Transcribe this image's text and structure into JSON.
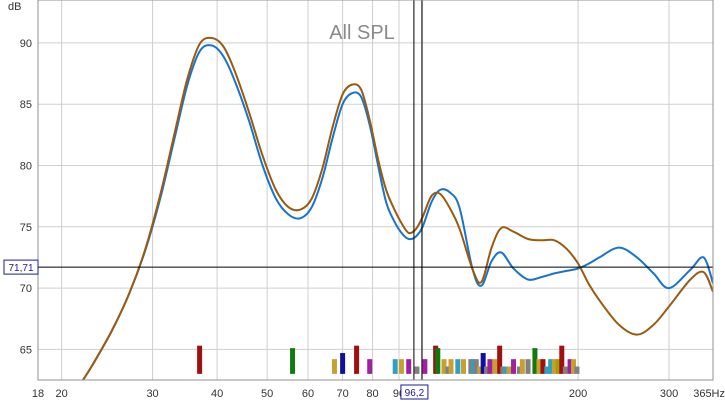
{
  "chart_data": {
    "type": "line",
    "title": "All SPL",
    "ylabel": "dB",
    "xunit": "Hz",
    "xscale": "log",
    "xlim": [
      18,
      365
    ],
    "ylim": [
      62.5,
      93.5
    ],
    "grid": true,
    "x_ticks": [
      {
        "value": 18,
        "label": "18"
      },
      {
        "value": 20,
        "label": "20"
      },
      {
        "value": 30,
        "label": "30"
      },
      {
        "value": 40,
        "label": "40"
      },
      {
        "value": 50,
        "label": "50"
      },
      {
        "value": 60,
        "label": "60"
      },
      {
        "value": 70,
        "label": "70"
      },
      {
        "value": 80,
        "label": "80"
      },
      {
        "value": 90,
        "label": "90"
      },
      {
        "value": 200,
        "label": "200"
      },
      {
        "value": 300,
        "label": "300"
      },
      {
        "value": 365,
        "label": "365Hz"
      }
    ],
    "y_ticks": [
      65,
      70,
      75,
      80,
      85,
      90
    ],
    "cursor": {
      "x": 96.2,
      "x_label": "96,2",
      "y": 71.71,
      "y_label": "71,71"
    },
    "series": [
      {
        "color": "#1874cd",
        "x": [
          22,
          23,
          25,
          27,
          29,
          31,
          33,
          35,
          37,
          39,
          41,
          43,
          46,
          49,
          52,
          55,
          58,
          61,
          64,
          67,
          70,
          73,
          76,
          79,
          82,
          85,
          88,
          91,
          94,
          97,
          100,
          104,
          108,
          113,
          118,
          125,
          130,
          136,
          142,
          150,
          160,
          170,
          180,
          190,
          200,
          210,
          220,
          240,
          260,
          280,
          300,
          330,
          350,
          365
        ],
        "y": [
          62.5,
          63.8,
          66.5,
          69.5,
          73.0,
          77.2,
          82.0,
          86.5,
          89.3,
          89.8,
          89.0,
          87.2,
          83.8,
          80.0,
          77.3,
          76.0,
          75.7,
          76.6,
          79.0,
          82.3,
          85.0,
          85.9,
          85.6,
          83.3,
          80.0,
          77.0,
          75.5,
          74.5,
          74.0,
          74.2,
          75.0,
          77.0,
          78.0,
          77.8,
          76.5,
          71.5,
          70.2,
          72.2,
          72.9,
          71.6,
          70.7,
          70.9,
          71.2,
          71.4,
          71.6,
          72.0,
          72.5,
          73.3,
          72.5,
          71.2,
          70.0,
          71.5,
          72.5,
          70.4
        ]
      },
      {
        "color": "#9a5a10",
        "x": [
          22,
          23,
          25,
          27,
          29,
          31,
          33,
          35,
          37,
          39,
          41,
          43,
          46,
          49,
          52,
          55,
          58,
          61,
          64,
          67,
          70,
          73,
          76,
          79,
          82,
          85,
          88,
          91,
          94,
          97,
          100,
          104,
          108,
          113,
          118,
          125,
          130,
          136,
          142,
          150,
          160,
          170,
          180,
          190,
          200,
          210,
          220,
          240,
          260,
          280,
          300,
          330,
          350,
          365
        ],
        "y": [
          62.5,
          63.8,
          66.5,
          69.5,
          73.1,
          77.5,
          82.4,
          87.0,
          89.9,
          90.4,
          89.8,
          88.0,
          84.5,
          80.8,
          78.0,
          76.6,
          76.4,
          77.3,
          79.8,
          83.2,
          85.8,
          86.6,
          86.2,
          83.7,
          80.5,
          78.0,
          76.5,
          75.3,
          74.5,
          74.8,
          75.8,
          77.5,
          77.7,
          76.5,
          74.8,
          71.5,
          70.5,
          73.3,
          74.9,
          74.6,
          74.0,
          73.9,
          73.9,
          73.2,
          72.0,
          70.3,
          69.0,
          67.0,
          66.2,
          67.0,
          68.5,
          70.7,
          71.3,
          69.7
        ]
      }
    ],
    "markers": {
      "bottom": 63.0,
      "bars": [
        {
          "x": 37.0,
          "value": 65.3,
          "color": "#a01010"
        },
        {
          "x": 56.0,
          "value": 65.1,
          "color": "#107a10"
        },
        {
          "x": 67.5,
          "value": 64.2,
          "color": "#c8a030"
        },
        {
          "x": 70.0,
          "value": 64.7,
          "color": "#1010a0"
        },
        {
          "x": 74.5,
          "value": 65.3,
          "color": "#a01010"
        },
        {
          "x": 79.0,
          "value": 64.2,
          "color": "#a020a0"
        },
        {
          "x": 88.5,
          "value": 64.2,
          "color": "#30a0c0"
        },
        {
          "x": 91.0,
          "value": 64.2,
          "color": "#c8a030"
        },
        {
          "x": 94.0,
          "value": 64.2,
          "color": "#a020a0"
        },
        {
          "x": 97.5,
          "value": 63.6,
          "color": "#808080"
        },
        {
          "x": 101.0,
          "value": 64.2,
          "color": "#a020a0"
        },
        {
          "x": 106.0,
          "value": 65.3,
          "color": "#a01010"
        },
        {
          "x": 107.0,
          "value": 65.1,
          "color": "#107a10"
        },
        {
          "x": 110.0,
          "value": 64.2,
          "color": "#c8a030"
        },
        {
          "x": 112.0,
          "value": 63.6,
          "color": "#808080"
        },
        {
          "x": 113.5,
          "value": 64.2,
          "color": "#c8a030"
        },
        {
          "x": 117.0,
          "value": 64.2,
          "color": "#30a0c0"
        },
        {
          "x": 120.0,
          "value": 64.2,
          "color": "#c8a030"
        },
        {
          "x": 124.0,
          "value": 64.2,
          "color": "#808080"
        },
        {
          "x": 125.5,
          "value": 64.2,
          "color": "#30a0c0"
        },
        {
          "x": 127.0,
          "value": 64.2,
          "color": "#808080"
        },
        {
          "x": 129.0,
          "value": 63.6,
          "color": "#c8a030"
        },
        {
          "x": 131.0,
          "value": 64.7,
          "color": "#1010a0"
        },
        {
          "x": 133.0,
          "value": 63.6,
          "color": "#808080"
        },
        {
          "x": 135.0,
          "value": 64.2,
          "color": "#a020a0"
        },
        {
          "x": 138.0,
          "value": 64.2,
          "color": "#c8a030"
        },
        {
          "x": 141.0,
          "value": 65.3,
          "color": "#a01010"
        },
        {
          "x": 143.0,
          "value": 63.6,
          "color": "#808080"
        },
        {
          "x": 145.0,
          "value": 63.6,
          "color": "#30a0c0"
        },
        {
          "x": 147.0,
          "value": 63.6,
          "color": "#c8a030"
        },
        {
          "x": 150.0,
          "value": 64.2,
          "color": "#a020a0"
        },
        {
          "x": 154.0,
          "value": 63.6,
          "color": "#808080"
        },
        {
          "x": 156.0,
          "value": 64.2,
          "color": "#c8a030"
        },
        {
          "x": 160.0,
          "value": 64.2,
          "color": "#808080"
        },
        {
          "x": 165.0,
          "value": 65.1,
          "color": "#107a10"
        },
        {
          "x": 168.0,
          "value": 64.2,
          "color": "#c8a030"
        },
        {
          "x": 171.0,
          "value": 64.2,
          "color": "#a01010"
        },
        {
          "x": 174.0,
          "value": 63.6,
          "color": "#30a0c0"
        },
        {
          "x": 177.0,
          "value": 64.2,
          "color": "#30a0c0"
        },
        {
          "x": 180.0,
          "value": 64.2,
          "color": "#c8a030"
        },
        {
          "x": 183.0,
          "value": 64.2,
          "color": "#a0a000"
        },
        {
          "x": 186.0,
          "value": 65.3,
          "color": "#a01010"
        },
        {
          "x": 189.0,
          "value": 63.6,
          "color": "#808080"
        },
        {
          "x": 193.0,
          "value": 64.2,
          "color": "#a020a0"
        },
        {
          "x": 196.0,
          "value": 64.2,
          "color": "#c8a030"
        },
        {
          "x": 199.0,
          "value": 63.6,
          "color": "#808080"
        }
      ]
    },
    "colors": {
      "grid": "#cfcfcf",
      "border": "#909090",
      "cursor": "#000000",
      "readout_box": "#1a1aa0"
    }
  }
}
